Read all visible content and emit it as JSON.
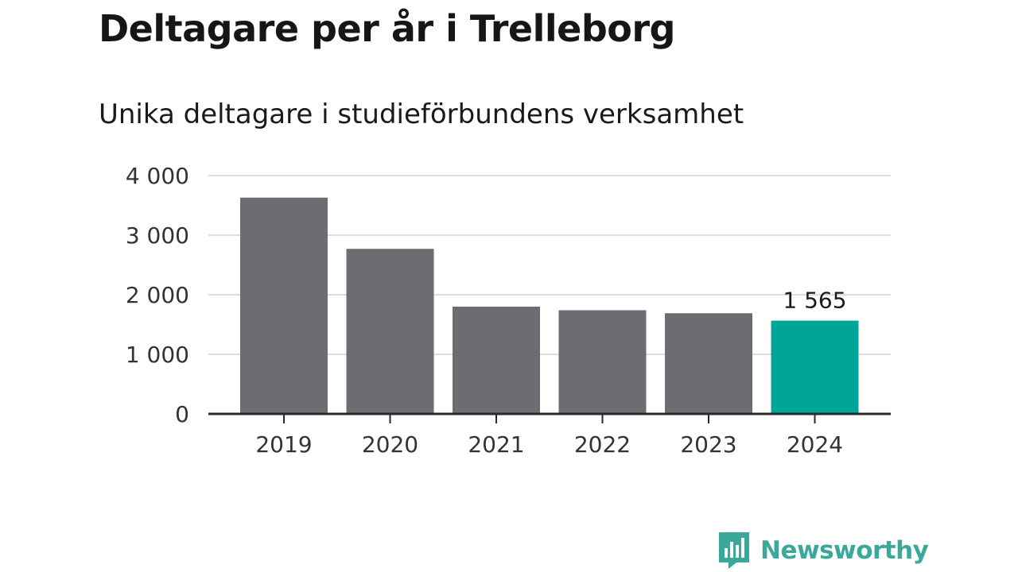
{
  "title": "Deltagare per år i Trelleborg",
  "subtitle": "Unika deltagare i studieförbundens verksamhet",
  "brand": {
    "name": "Newsworthy",
    "icon": "bar-chart-speech-bubble-icon"
  },
  "colors": {
    "bar_default": "#6d6c72",
    "bar_highlight": "#00a59a",
    "gridline": "#dcdcdc",
    "axis": "#2a2a2a",
    "brand": "#3aa89a"
  },
  "chart_data": {
    "type": "bar",
    "categories": [
      "2019",
      "2020",
      "2021",
      "2022",
      "2023",
      "2024"
    ],
    "values": [
      3630,
      2770,
      1800,
      1740,
      1690,
      1565
    ],
    "highlight_index": 5,
    "data_labels": [
      {
        "index": 5,
        "text": "1 565"
      }
    ],
    "ylim": [
      0,
      4000
    ],
    "yticks": [
      0,
      1000,
      2000,
      3000,
      4000
    ],
    "ytick_labels": [
      "0",
      "1 000",
      "2 000",
      "3 000",
      "4 000"
    ],
    "grid": true,
    "legend": "none",
    "xlabel": "",
    "ylabel": ""
  }
}
